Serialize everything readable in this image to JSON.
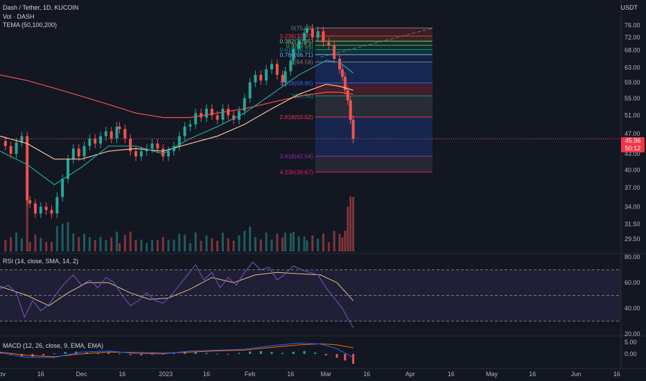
{
  "header": {
    "symbol": "Dash / Tether, 1D, KUCOIN",
    "volume_label": "Vol · DASH",
    "tema_label": "TEMA (50,100,200)",
    "unit": "USDT"
  },
  "current_price": {
    "price": "45.96",
    "countdown": "50:12"
  },
  "colors": {
    "background": "#131722",
    "up": "#26a69a",
    "down": "#ef5350",
    "tema50": "#26a69a",
    "tema100": "#f7c59f",
    "tema200": "#ef5350",
    "rsi": "#7e57c2",
    "rsi_ma": "#e2c18a",
    "macd": "#2962ff",
    "signal": "#ff6d00"
  },
  "panes": {
    "rsi_label": "RSI (14, close, SMA, 14, 2)",
    "macd_label": "MACD (12, 26, close, 9, EMA, EMA)"
  },
  "chart_data": {
    "type": "candlestick",
    "title": "Dash / Tether, 1D, KUCOIN",
    "y_scale": "log",
    "ylim": [
      28.5,
      78
    ],
    "price_axis_ticks": [
      "76.00",
      "72.00",
      "68.00",
      "63.00",
      "59.00",
      "55.00",
      "51.00",
      "47.00",
      "43.00",
      "40.00",
      "37.00",
      "34.00",
      "31.50",
      "29.50"
    ],
    "x_axis_ticks": [
      {
        "label": "Nov",
        "day": 0
      },
      {
        "label": "16",
        "day": 15
      },
      {
        "label": "Dec",
        "day": 30
      },
      {
        "label": "16",
        "day": 45
      },
      {
        "label": "2023",
        "day": 61
      },
      {
        "label": "16",
        "day": 76
      },
      {
        "label": "Feb",
        "day": 92
      },
      {
        "label": "16",
        "day": 107
      },
      {
        "label": "Mar",
        "day": 120
      },
      {
        "label": "16",
        "day": 135
      },
      {
        "label": "Apr",
        "day": 151
      },
      {
        "label": "16",
        "day": 166
      },
      {
        "label": "May",
        "day": 181
      },
      {
        "label": "16",
        "day": 196
      },
      {
        "label": "Jun",
        "day": 212
      },
      {
        "label": "16",
        "day": 227
      }
    ],
    "close_points": [
      {
        "day": 0,
        "close": 45.5
      },
      {
        "day": 2,
        "close": 44.5
      },
      {
        "day": 4,
        "close": 43.0
      },
      {
        "day": 6,
        "close": 45.2
      },
      {
        "day": 8,
        "close": 46.5
      },
      {
        "day": 10,
        "close": 35.0
      },
      {
        "day": 11,
        "close": 34.5
      },
      {
        "day": 13,
        "close": 33.0
      },
      {
        "day": 15,
        "close": 34.0
      },
      {
        "day": 17,
        "close": 33.5
      },
      {
        "day": 19,
        "close": 33.0
      },
      {
        "day": 21,
        "close": 35.5
      },
      {
        "day": 23,
        "close": 38.5
      },
      {
        "day": 25,
        "close": 42.0
      },
      {
        "day": 27,
        "close": 44.0
      },
      {
        "day": 29,
        "close": 42.5
      },
      {
        "day": 31,
        "close": 44.5
      },
      {
        "day": 33,
        "close": 46.0
      },
      {
        "day": 35,
        "close": 45.0
      },
      {
        "day": 37,
        "close": 46.5
      },
      {
        "day": 39,
        "close": 47.5
      },
      {
        "day": 41,
        "close": 46.0
      },
      {
        "day": 43,
        "close": 48.5
      },
      {
        "day": 44,
        "close": 48.0
      },
      {
        "day": 46,
        "close": 46.0
      },
      {
        "day": 48,
        "close": 43.5
      },
      {
        "day": 50,
        "close": 42.5
      },
      {
        "day": 52,
        "close": 43.5
      },
      {
        "day": 54,
        "close": 44.0
      },
      {
        "day": 56,
        "close": 45.0
      },
      {
        "day": 58,
        "close": 44.0
      },
      {
        "day": 60,
        "close": 42.5
      },
      {
        "day": 62,
        "close": 43.5
      },
      {
        "day": 64,
        "close": 44.5
      },
      {
        "day": 66,
        "close": 46.5
      },
      {
        "day": 68,
        "close": 48.5
      },
      {
        "day": 70,
        "close": 49.0
      },
      {
        "day": 72,
        "close": 51.5
      },
      {
        "day": 74,
        "close": 50.5
      },
      {
        "day": 76,
        "close": 52.5
      },
      {
        "day": 78,
        "close": 51.0
      },
      {
        "day": 80,
        "close": 50.0
      },
      {
        "day": 82,
        "close": 52.5
      },
      {
        "day": 84,
        "close": 51.0
      },
      {
        "day": 86,
        "close": 50.0
      },
      {
        "day": 88,
        "close": 52.0
      },
      {
        "day": 90,
        "close": 55.0
      },
      {
        "day": 92,
        "close": 59.0
      },
      {
        "day": 94,
        "close": 61.0
      },
      {
        "day": 96,
        "close": 59.5
      },
      {
        "day": 98,
        "close": 62.5
      },
      {
        "day": 100,
        "close": 64.0
      },
      {
        "day": 102,
        "close": 61.0
      },
      {
        "day": 104,
        "close": 59.0
      },
      {
        "day": 105,
        "close": 62.0
      },
      {
        "day": 107,
        "close": 65.0
      },
      {
        "day": 108,
        "close": 68.5
      },
      {
        "day": 110,
        "close": 71.0
      },
      {
        "day": 112,
        "close": 73.5
      },
      {
        "day": 113,
        "close": 75.0
      },
      {
        "day": 115,
        "close": 72.0
      },
      {
        "day": 117,
        "close": 74.0
      },
      {
        "day": 119,
        "close": 70.5
      },
      {
        "day": 121,
        "close": 69.5
      },
      {
        "day": 123,
        "close": 65.5
      },
      {
        "day": 125,
        "close": 62.5
      },
      {
        "day": 126,
        "close": 60.5
      },
      {
        "day": 127,
        "close": 57.0
      },
      {
        "day": 128,
        "close": 54.5
      },
      {
        "day": 129,
        "close": 50.0
      },
      {
        "day": 130,
        "close": 45.96
      }
    ],
    "fibonacci_levels": [
      {
        "ratio": "0",
        "price": 75.09,
        "label": "0(75.09)"
      },
      {
        "ratio": "0.236",
        "price": 72.47,
        "label": "0.236(72.47)"
      },
      {
        "ratio": "0.382",
        "price": 70.85,
        "label": "0.382(70.85)"
      },
      {
        "ratio": "0.5",
        "price": 69.54,
        "label": "0.5(69.54)"
      },
      {
        "ratio": "0.618",
        "price": 68.23,
        "label": "0.618(68.23)"
      },
      {
        "ratio": "0.786",
        "price": 66.71,
        "label": "0.786(66.71)"
      },
      {
        "ratio": "1",
        "price": 64.59,
        "label": "1(64.59)"
      },
      {
        "ratio": "1.618",
        "price": 58.85,
        "label": "1.618(58.85)"
      },
      {
        "ratio": "2",
        "price": 55.56,
        "label": "2(55.56)"
      },
      {
        "ratio": "2.618",
        "price": 50.62,
        "label": "2.618(50.62)"
      },
      {
        "ratio": "3.618",
        "price": 42.54,
        "label": "3.618(42.54)"
      },
      {
        "ratio": "4.236",
        "price": 39.67,
        "label": "4.236(39.67)"
      }
    ],
    "tema_50": [
      {
        "day": 0,
        "v": 43.5
      },
      {
        "day": 10,
        "v": 41.0
      },
      {
        "day": 20,
        "v": 37.5
      },
      {
        "day": 30,
        "v": 40.5
      },
      {
        "day": 40,
        "v": 44.5
      },
      {
        "day": 50,
        "v": 44.5
      },
      {
        "day": 60,
        "v": 43.0
      },
      {
        "day": 70,
        "v": 46.0
      },
      {
        "day": 80,
        "v": 48.5
      },
      {
        "day": 90,
        "v": 51.5
      },
      {
        "day": 100,
        "v": 56.0
      },
      {
        "day": 110,
        "v": 61.0
      },
      {
        "day": 120,
        "v": 65.0
      },
      {
        "day": 125,
        "v": 64.5
      },
      {
        "day": 130,
        "v": 61.5
      }
    ],
    "tema_100": [
      {
        "day": 0,
        "v": 46.5
      },
      {
        "day": 10,
        "v": 45.0
      },
      {
        "day": 20,
        "v": 42.0
      },
      {
        "day": 30,
        "v": 42.0
      },
      {
        "day": 40,
        "v": 43.5
      },
      {
        "day": 50,
        "v": 44.0
      },
      {
        "day": 60,
        "v": 43.5
      },
      {
        "day": 70,
        "v": 45.0
      },
      {
        "day": 80,
        "v": 46.5
      },
      {
        "day": 90,
        "v": 49.0
      },
      {
        "day": 100,
        "v": 52.5
      },
      {
        "day": 110,
        "v": 56.0
      },
      {
        "day": 120,
        "v": 58.5
      },
      {
        "day": 125,
        "v": 58.0
      },
      {
        "day": 130,
        "v": 57.0
      }
    ],
    "tema_200": [
      {
        "day": 0,
        "v": 61.0
      },
      {
        "day": 10,
        "v": 59.5
      },
      {
        "day": 20,
        "v": 57.5
      },
      {
        "day": 30,
        "v": 55.5
      },
      {
        "day": 40,
        "v": 53.5
      },
      {
        "day": 50,
        "v": 51.5
      },
      {
        "day": 60,
        "v": 50.5
      },
      {
        "day": 70,
        "v": 50.5
      },
      {
        "day": 80,
        "v": 51.5
      },
      {
        "day": 90,
        "v": 52.5
      },
      {
        "day": 100,
        "v": 54.0
      },
      {
        "day": 110,
        "v": 55.5
      },
      {
        "day": 120,
        "v": 56.5
      },
      {
        "day": 125,
        "v": 56.5
      },
      {
        "day": 130,
        "v": 56.0
      }
    ],
    "rsi": {
      "axis_ticks": [
        "80.00",
        "60.00",
        "40.00",
        "20.00"
      ],
      "ylim": [
        20,
        80
      ],
      "bands": [
        70,
        50,
        30
      ],
      "rsi_points": [
        {
          "day": 0,
          "v": 55
        },
        {
          "day": 3,
          "v": 58
        },
        {
          "day": 6,
          "v": 52
        },
        {
          "day": 9,
          "v": 33
        },
        {
          "day": 12,
          "v": 46
        },
        {
          "day": 15,
          "v": 38
        },
        {
          "day": 18,
          "v": 43
        },
        {
          "day": 21,
          "v": 52
        },
        {
          "day": 24,
          "v": 60
        },
        {
          "day": 27,
          "v": 66
        },
        {
          "day": 30,
          "v": 58
        },
        {
          "day": 33,
          "v": 62
        },
        {
          "day": 36,
          "v": 56
        },
        {
          "day": 39,
          "v": 64
        },
        {
          "day": 42,
          "v": 60
        },
        {
          "day": 45,
          "v": 50
        },
        {
          "day": 48,
          "v": 42
        },
        {
          "day": 51,
          "v": 46
        },
        {
          "day": 54,
          "v": 52
        },
        {
          "day": 57,
          "v": 46
        },
        {
          "day": 60,
          "v": 44
        },
        {
          "day": 63,
          "v": 50
        },
        {
          "day": 66,
          "v": 58
        },
        {
          "day": 69,
          "v": 66
        },
        {
          "day": 72,
          "v": 74
        },
        {
          "day": 75,
          "v": 62
        },
        {
          "day": 78,
          "v": 68
        },
        {
          "day": 81,
          "v": 56
        },
        {
          "day": 84,
          "v": 64
        },
        {
          "day": 87,
          "v": 58
        },
        {
          "day": 90,
          "v": 68
        },
        {
          "day": 93,
          "v": 76
        },
        {
          "day": 96,
          "v": 70
        },
        {
          "day": 99,
          "v": 72
        },
        {
          "day": 102,
          "v": 62
        },
        {
          "day": 105,
          "v": 67
        },
        {
          "day": 108,
          "v": 73
        },
        {
          "day": 111,
          "v": 70
        },
        {
          "day": 114,
          "v": 68
        },
        {
          "day": 117,
          "v": 66
        },
        {
          "day": 120,
          "v": 56
        },
        {
          "day": 123,
          "v": 48
        },
        {
          "day": 126,
          "v": 40
        },
        {
          "day": 128,
          "v": 32
        },
        {
          "day": 130,
          "v": 25
        }
      ],
      "ma_points": [
        {
          "day": 0,
          "v": 57
        },
        {
          "day": 10,
          "v": 50
        },
        {
          "day": 18,
          "v": 42
        },
        {
          "day": 25,
          "v": 52
        },
        {
          "day": 32,
          "v": 60
        },
        {
          "day": 40,
          "v": 60
        },
        {
          "day": 48,
          "v": 52
        },
        {
          "day": 55,
          "v": 47
        },
        {
          "day": 62,
          "v": 48
        },
        {
          "day": 70,
          "v": 55
        },
        {
          "day": 78,
          "v": 64
        },
        {
          "day": 86,
          "v": 60
        },
        {
          "day": 94,
          "v": 66
        },
        {
          "day": 102,
          "v": 68
        },
        {
          "day": 110,
          "v": 67
        },
        {
          "day": 118,
          "v": 66
        },
        {
          "day": 124,
          "v": 60
        },
        {
          "day": 130,
          "v": 46
        }
      ]
    },
    "macd": {
      "axis_ticks": [
        "5.00",
        "0.00"
      ],
      "ylim": [
        -5,
        7
      ],
      "histogram": [
        {
          "day": 0,
          "v": 0.3
        },
        {
          "day": 4,
          "v": -0.4
        },
        {
          "day": 8,
          "v": -1.0
        },
        {
          "day": 12,
          "v": -1.2
        },
        {
          "day": 16,
          "v": -0.6
        },
        {
          "day": 20,
          "v": 0.2
        },
        {
          "day": 24,
          "v": 0.8
        },
        {
          "day": 28,
          "v": 1.0
        },
        {
          "day": 32,
          "v": 0.6
        },
        {
          "day": 36,
          "v": 0.3
        },
        {
          "day": 40,
          "v": 0.5
        },
        {
          "day": 44,
          "v": 0.2
        },
        {
          "day": 48,
          "v": -0.5
        },
        {
          "day": 52,
          "v": -0.6
        },
        {
          "day": 56,
          "v": -0.3
        },
        {
          "day": 60,
          "v": -0.2
        },
        {
          "day": 64,
          "v": 0.4
        },
        {
          "day": 68,
          "v": 0.6
        },
        {
          "day": 72,
          "v": 0.8
        },
        {
          "day": 76,
          "v": 0.4
        },
        {
          "day": 80,
          "v": 0.1
        },
        {
          "day": 84,
          "v": -0.2
        },
        {
          "day": 88,
          "v": 0.4
        },
        {
          "day": 92,
          "v": 1.0
        },
        {
          "day": 96,
          "v": 1.2
        },
        {
          "day": 100,
          "v": 0.8
        },
        {
          "day": 104,
          "v": 0.4
        },
        {
          "day": 108,
          "v": 0.9
        },
        {
          "day": 112,
          "v": 1.2
        },
        {
          "day": 116,
          "v": 0.6
        },
        {
          "day": 120,
          "v": -0.6
        },
        {
          "day": 124,
          "v": -1.6
        },
        {
          "day": 127,
          "v": -2.8
        },
        {
          "day": 130,
          "v": -4.2
        }
      ],
      "macd_points": [
        {
          "day": 0,
          "v": 0.5
        },
        {
          "day": 10,
          "v": -1.5
        },
        {
          "day": 20,
          "v": -1.5
        },
        {
          "day": 30,
          "v": 0.8
        },
        {
          "day": 40,
          "v": 1.2
        },
        {
          "day": 50,
          "v": 0.2
        },
        {
          "day": 60,
          "v": 0.0
        },
        {
          "day": 70,
          "v": 1.2
        },
        {
          "day": 80,
          "v": 1.6
        },
        {
          "day": 90,
          "v": 2.0
        },
        {
          "day": 100,
          "v": 3.5
        },
        {
          "day": 110,
          "v": 4.6
        },
        {
          "day": 118,
          "v": 4.2
        },
        {
          "day": 124,
          "v": 2.2
        },
        {
          "day": 130,
          "v": -1.5
        }
      ],
      "signal_points": [
        {
          "day": 0,
          "v": 0.8
        },
        {
          "day": 10,
          "v": -0.6
        },
        {
          "day": 20,
          "v": -1.2
        },
        {
          "day": 30,
          "v": 0.0
        },
        {
          "day": 40,
          "v": 0.8
        },
        {
          "day": 50,
          "v": 0.6
        },
        {
          "day": 60,
          "v": 0.3
        },
        {
          "day": 70,
          "v": 0.8
        },
        {
          "day": 80,
          "v": 1.3
        },
        {
          "day": 90,
          "v": 1.6
        },
        {
          "day": 100,
          "v": 2.8
        },
        {
          "day": 110,
          "v": 3.8
        },
        {
          "day": 118,
          "v": 4.3
        },
        {
          "day": 124,
          "v": 3.8
        },
        {
          "day": 130,
          "v": 2.6
        }
      ]
    }
  }
}
